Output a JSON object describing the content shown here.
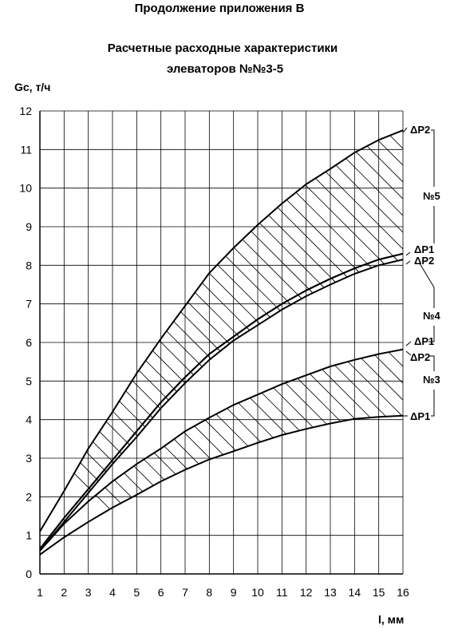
{
  "header": {
    "appendix": "Продолжение приложения В",
    "title_line1": "Расчетные расходные характеристики",
    "title_line2": "элеваторов №№3-5"
  },
  "chart_data": {
    "type": "line",
    "title": "Расчетные расходные характеристики элеваторов №№3-5",
    "xlabel": "l, мм",
    "ylabel": "Gc, т/ч",
    "xlim": [
      1,
      16
    ],
    "ylim": [
      0,
      12
    ],
    "x_ticks": [
      1,
      2,
      3,
      4,
      5,
      6,
      7,
      8,
      9,
      10,
      11,
      12,
      13,
      14,
      15,
      16
    ],
    "y_ticks": [
      0,
      1,
      2,
      3,
      4,
      5,
      6,
      7,
      8,
      9,
      10,
      11,
      12
    ],
    "grid": true,
    "series": [
      {
        "name": "№3 ΔP1",
        "group": "№3",
        "x": [
          1,
          2,
          3,
          4,
          5,
          6,
          7,
          8,
          9,
          10,
          11,
          12,
          13,
          14,
          15,
          16
        ],
        "values": [
          0.5,
          0.95,
          1.35,
          1.72,
          2.05,
          2.4,
          2.7,
          2.97,
          3.18,
          3.4,
          3.6,
          3.76,
          3.9,
          4.02,
          4.07,
          4.1
        ]
      },
      {
        "name": "№3 ΔP2",
        "group": "№3",
        "x": [
          1,
          2,
          3,
          4,
          5,
          6,
          7,
          8,
          9,
          10,
          11,
          12,
          13,
          14,
          15,
          16
        ],
        "values": [
          0.6,
          1.3,
          1.88,
          2.4,
          2.85,
          3.25,
          3.7,
          4.05,
          4.38,
          4.65,
          4.92,
          5.15,
          5.38,
          5.55,
          5.7,
          5.82
        ]
      },
      {
        "name": "№4 ΔP1",
        "group": "№4",
        "x": [
          1,
          2,
          3,
          4,
          5,
          6,
          7,
          8,
          9,
          10,
          11,
          12,
          13,
          14,
          15,
          16
        ],
        "values": [
          0.65,
          1.45,
          2.2,
          2.95,
          3.7,
          4.45,
          5.1,
          5.7,
          6.15,
          6.6,
          7.0,
          7.35,
          7.65,
          7.92,
          8.15,
          8.3
        ]
      },
      {
        "name": "№4 ΔP2",
        "group": "№4",
        "x": [
          1,
          2,
          3,
          4,
          5,
          6,
          7,
          8,
          9,
          10,
          11,
          12,
          13,
          14,
          15,
          16
        ],
        "values": [
          0.6,
          1.35,
          2.1,
          2.85,
          3.55,
          4.3,
          4.95,
          5.55,
          6.05,
          6.45,
          6.85,
          7.2,
          7.5,
          7.78,
          8.0,
          8.15
        ]
      },
      {
        "name": "№5 ΔP2",
        "group": "№5",
        "x": [
          1,
          2,
          3,
          4,
          5,
          6,
          7,
          8,
          9,
          10,
          11,
          12,
          13,
          14,
          15,
          16
        ],
        "values": [
          1.1,
          2.15,
          3.25,
          4.2,
          5.2,
          6.1,
          6.95,
          7.8,
          8.45,
          9.05,
          9.6,
          10.1,
          10.5,
          10.92,
          11.25,
          11.5
        ]
      },
      {
        "name": "№5 ΔP1",
        "group": "№5",
        "x": [
          1,
          2,
          3,
          4,
          5,
          6,
          7,
          8,
          9,
          10,
          11,
          12,
          13,
          14,
          15,
          16
        ],
        "values": [
          0.65,
          1.45,
          2.2,
          2.95,
          3.7,
          4.45,
          5.1,
          5.7,
          6.15,
          6.6,
          7.0,
          7.35,
          7.65,
          7.92,
          8.15,
          8.3
        ]
      }
    ],
    "bands": [
      {
        "name": "№3",
        "lower": "№3 ΔP1",
        "upper": "№3 ΔP2"
      },
      {
        "name": "№4",
        "lower": "№4 ΔP2",
        "upper": "№4 ΔP1"
      },
      {
        "name": "№5",
        "lower": "№4 ΔP2",
        "upper": "№5 ΔP2"
      }
    ],
    "annotations": {
      "labels": [
        {
          "text": "ΔP2",
          "at_series": "№5 ΔP2"
        },
        {
          "text": "№5"
        },
        {
          "text": "ΔP1",
          "at_series": "№4 ΔP1"
        },
        {
          "text": "ΔP2",
          "at_series": "№4 ΔP2"
        },
        {
          "text": "№4"
        },
        {
          "text": "ΔP1",
          "at_series": "№3 ΔP2"
        },
        {
          "text": "ΔP2",
          "at_series": "№3 ΔP2"
        },
        {
          "text": "№3"
        },
        {
          "text": "ΔP1",
          "at_series": "№3 ΔP1"
        }
      ]
    },
    "colors": {
      "line": "#000000",
      "grid": "#000000",
      "hatch": "#000000",
      "background": "#ffffff"
    }
  }
}
